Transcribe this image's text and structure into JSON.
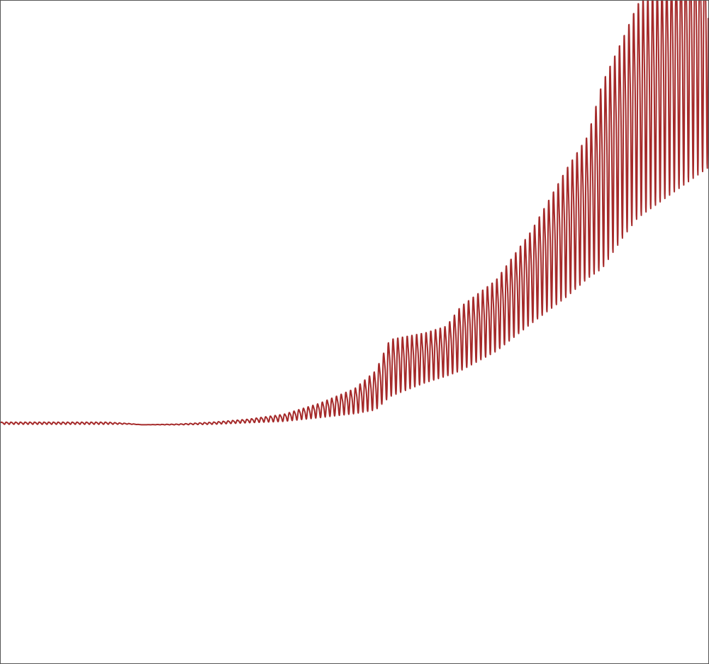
{
  "chart_data": {
    "type": "line",
    "title": "",
    "xlabel": "",
    "ylabel": "",
    "grid": false,
    "legend": "none",
    "xlim": [
      0,
      1
    ],
    "ylim": [
      -1,
      1
    ],
    "series": [
      {
        "color": "#a52a2a",
        "description_points": {
          "x": [
            0.0,
            0.05,
            0.1,
            0.15,
            0.18,
            0.2,
            0.25,
            0.3,
            0.35,
            0.4,
            0.45,
            0.5,
            0.53,
            0.55,
            0.6,
            0.63,
            0.65,
            0.7,
            0.75,
            0.8,
            0.83,
            0.85,
            0.88,
            0.9,
            0.95,
            1.0
          ],
          "trend": [
            -0.275,
            -0.275,
            -0.275,
            -0.275,
            -0.277,
            -0.28,
            -0.279,
            -0.275,
            -0.268,
            -0.258,
            -0.235,
            -0.205,
            -0.17,
            -0.1,
            -0.07,
            -0.05,
            -0.01,
            0.06,
            0.18,
            0.32,
            0.4,
            0.5,
            0.62,
            0.7,
            0.8,
            0.9
          ],
          "amplitude": [
            0.003,
            0.003,
            0.003,
            0.003,
            0.001,
            0.0,
            0.001,
            0.003,
            0.005,
            0.01,
            0.02,
            0.035,
            0.055,
            0.08,
            0.07,
            0.07,
            0.09,
            0.1,
            0.13,
            0.18,
            0.2,
            0.26,
            0.28,
            0.3,
            0.32,
            0.34
          ]
        },
        "oscillation_cycles": 150
      }
    ]
  }
}
